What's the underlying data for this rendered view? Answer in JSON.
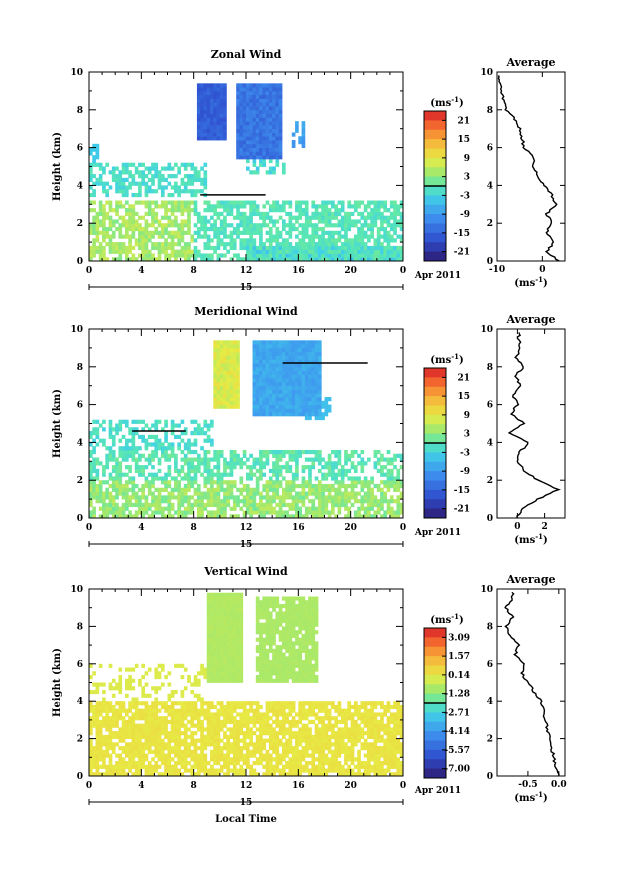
{
  "chart_data": [
    {
      "type": "heatmap",
      "title": "Zonal Wind",
      "ylabel": "Height (km)",
      "xlabel": "",
      "xticks": [
        "0",
        "4",
        "8",
        "12",
        "16",
        "20",
        "0"
      ],
      "yticks": [
        "0",
        "2",
        "4",
        "6",
        "8",
        "10"
      ],
      "ylim": [
        0,
        10
      ],
      "date_day": "15",
      "date_month": "Apr 2011",
      "colorbar": {
        "unit_label": "(ms-1)",
        "ticks": [
          "21",
          "15",
          "9",
          "3",
          "-3",
          "-9",
          "-15",
          "-21"
        ],
        "range": [
          -24,
          24
        ]
      },
      "average": {
        "title": "Average",
        "xlabel": "(ms-1)",
        "xticks": [
          "-10",
          "0"
        ],
        "yticks": [
          "0",
          "2",
          "4",
          "6",
          "8",
          "10"
        ],
        "xlim": [
          -10,
          5
        ],
        "profile_z": [
          0.0,
          0.5,
          1.0,
          1.5,
          2.0,
          2.5,
          3.0,
          3.5,
          4.0,
          4.5,
          5.0,
          5.5,
          6.0,
          6.5,
          7.0,
          7.5,
          8.0,
          8.5,
          9.0,
          9.5
        ],
        "profile_v": [
          3.5,
          1.0,
          2.5,
          1.0,
          2.0,
          1.0,
          3.0,
          2.0,
          0.5,
          -1.0,
          -2.0,
          -2.0,
          -4.0,
          -4.5,
          -5.0,
          -6.0,
          -8.0,
          -8.5,
          -9.0,
          -9.5
        ]
      }
    },
    {
      "type": "heatmap",
      "title": "Meridional Wind",
      "ylabel": "Height (km)",
      "xlabel": "",
      "xticks": [
        "0",
        "4",
        "8",
        "12",
        "16",
        "20",
        "0"
      ],
      "yticks": [
        "0",
        "2",
        "4",
        "6",
        "8",
        "10"
      ],
      "ylim": [
        0,
        10
      ],
      "date_day": "15",
      "date_month": "Apr 2011",
      "colorbar": {
        "unit_label": "(ms-1)",
        "ticks": [
          "21",
          "15",
          "9",
          "3",
          "-3",
          "-9",
          "-15",
          "-21"
        ],
        "range": [
          -24,
          24
        ]
      },
      "average": {
        "title": "Average",
        "xlabel": "(ms-1)",
        "xticks": [
          "0",
          "2"
        ],
        "yticks": [
          "0",
          "2",
          "4",
          "6",
          "8",
          "10"
        ],
        "xlim": [
          -1.5,
          3.5
        ],
        "profile_z": [
          0.0,
          0.5,
          1.0,
          1.5,
          2.0,
          2.5,
          3.0,
          3.5,
          4.0,
          4.5,
          5.0,
          5.5,
          6.0,
          6.5,
          7.0,
          7.5,
          8.0,
          8.5,
          9.0,
          9.5
        ],
        "profile_v": [
          0.0,
          0.3,
          1.5,
          3.0,
          1.5,
          0.5,
          0.0,
          0.2,
          0.8,
          -0.6,
          0.5,
          -0.5,
          0.0,
          -0.3,
          0.3,
          -0.2,
          0.5,
          -0.1,
          0.2,
          0.1
        ]
      }
    },
    {
      "type": "heatmap",
      "title": "Vertical Wind",
      "ylabel": "Height (km)",
      "xlabel": "Local Time",
      "xticks": [
        "0",
        "4",
        "8",
        "12",
        "16",
        "20",
        "0"
      ],
      "yticks": [
        "0",
        "2",
        "4",
        "6",
        "8",
        "10"
      ],
      "ylim": [
        0,
        10
      ],
      "date_day": "15",
      "date_month": "Apr 2011",
      "colorbar": {
        "unit_label": "(ms-1)",
        "ticks": [
          "3.09",
          "1.57",
          "0.14",
          "-1.28",
          "-2.71",
          "-4.14",
          "-5.57",
          "-7.00"
        ],
        "range": [
          -8.0,
          4.0
        ]
      },
      "average": {
        "title": "Average",
        "xlabel": "(ms-1)",
        "xticks": [
          "-0.5",
          "0.0"
        ],
        "yticks": [
          "0",
          "2",
          "4",
          "6",
          "8",
          "10"
        ],
        "xlim": [
          -1.0,
          0.1
        ],
        "profile_z": [
          0.0,
          0.5,
          1.0,
          1.5,
          2.0,
          2.5,
          3.0,
          3.5,
          4.0,
          4.5,
          5.0,
          5.5,
          6.0,
          6.5,
          7.0,
          7.5,
          8.0,
          8.5,
          9.0,
          9.5
        ],
        "profile_v": [
          0.0,
          -0.05,
          -0.08,
          -0.12,
          -0.15,
          -0.18,
          -0.22,
          -0.25,
          -0.28,
          -0.4,
          -0.5,
          -0.6,
          -0.55,
          -0.7,
          -0.65,
          -0.8,
          -0.85,
          -0.75,
          -0.85,
          -0.75
        ]
      }
    }
  ]
}
